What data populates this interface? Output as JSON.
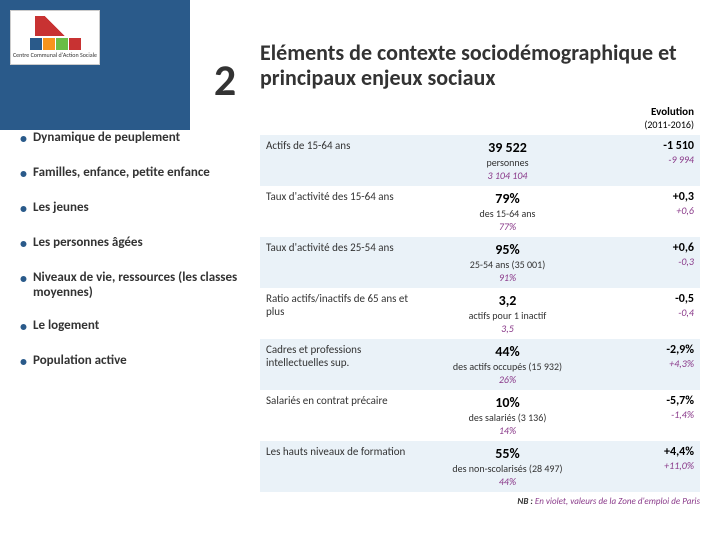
{
  "sidebar": {
    "logo_caption": "Centre Communal d'Action Sociale",
    "big_number": "2",
    "items": [
      "Dynamique de peuplement",
      "Familles, enfance, petite enfance",
      "Les jeunes",
      "Les personnes âgées",
      "Niveaux de vie, ressources (les classes moyennes)",
      "Le logement",
      "Population active"
    ]
  },
  "main": {
    "title": "Eléments de contexte sociodémographique et principaux enjeux sociaux",
    "header_evo_title": "Evolution",
    "header_evo_sub": "(2011-2016)",
    "rows": [
      {
        "label": "Actifs de 15-64 ans",
        "value_big": "39 522",
        "value_small": "personnes",
        "value_violet": "3 104 104",
        "evo1": "-1 510",
        "evo2": "-9 994"
      },
      {
        "label": "Taux d'activité des 15-64 ans",
        "value_big": "79%",
        "value_small": "des 15-64 ans",
        "value_violet": "77%",
        "evo1": "+0,3",
        "evo2": "+0,6"
      },
      {
        "label": "Taux d'activité des 25-54 ans",
        "value_big": "95%",
        "value_small": "25-54 ans (35 001)",
        "value_violet": "91%",
        "evo1": "+0,6",
        "evo2": "-0,3"
      },
      {
        "label": "Ratio actifs/inactifs de 65 ans et plus",
        "value_big": "3,2",
        "value_small": "actifs pour 1 inactif",
        "value_violet": "3,5",
        "evo1": "-0,5",
        "evo2": "-0,4"
      },
      {
        "label": "Cadres et professions intellectuelles sup.",
        "value_big": "44%",
        "value_small": "des actifs occupés (15 932)",
        "value_violet": "26%",
        "evo1": "-2,9%",
        "evo2": "+4,3%"
      },
      {
        "label": "Salariés en contrat précaire",
        "value_big": "10%",
        "value_small": "des salariés (3 136)",
        "value_violet": "14%",
        "evo1": "-5,7%",
        "evo2": "-1,4%"
      },
      {
        "label": "Les hauts niveaux de formation",
        "value_big": "55%",
        "value_small": "des non-scolarisés (28 497)",
        "value_violet": "44%",
        "evo1": "+4,4%",
        "evo2": "+11,0%"
      }
    ],
    "footnote_prefix": "NB :",
    "footnote_text": "En violet, valeurs de la Zone d'emploi de Paris"
  }
}
